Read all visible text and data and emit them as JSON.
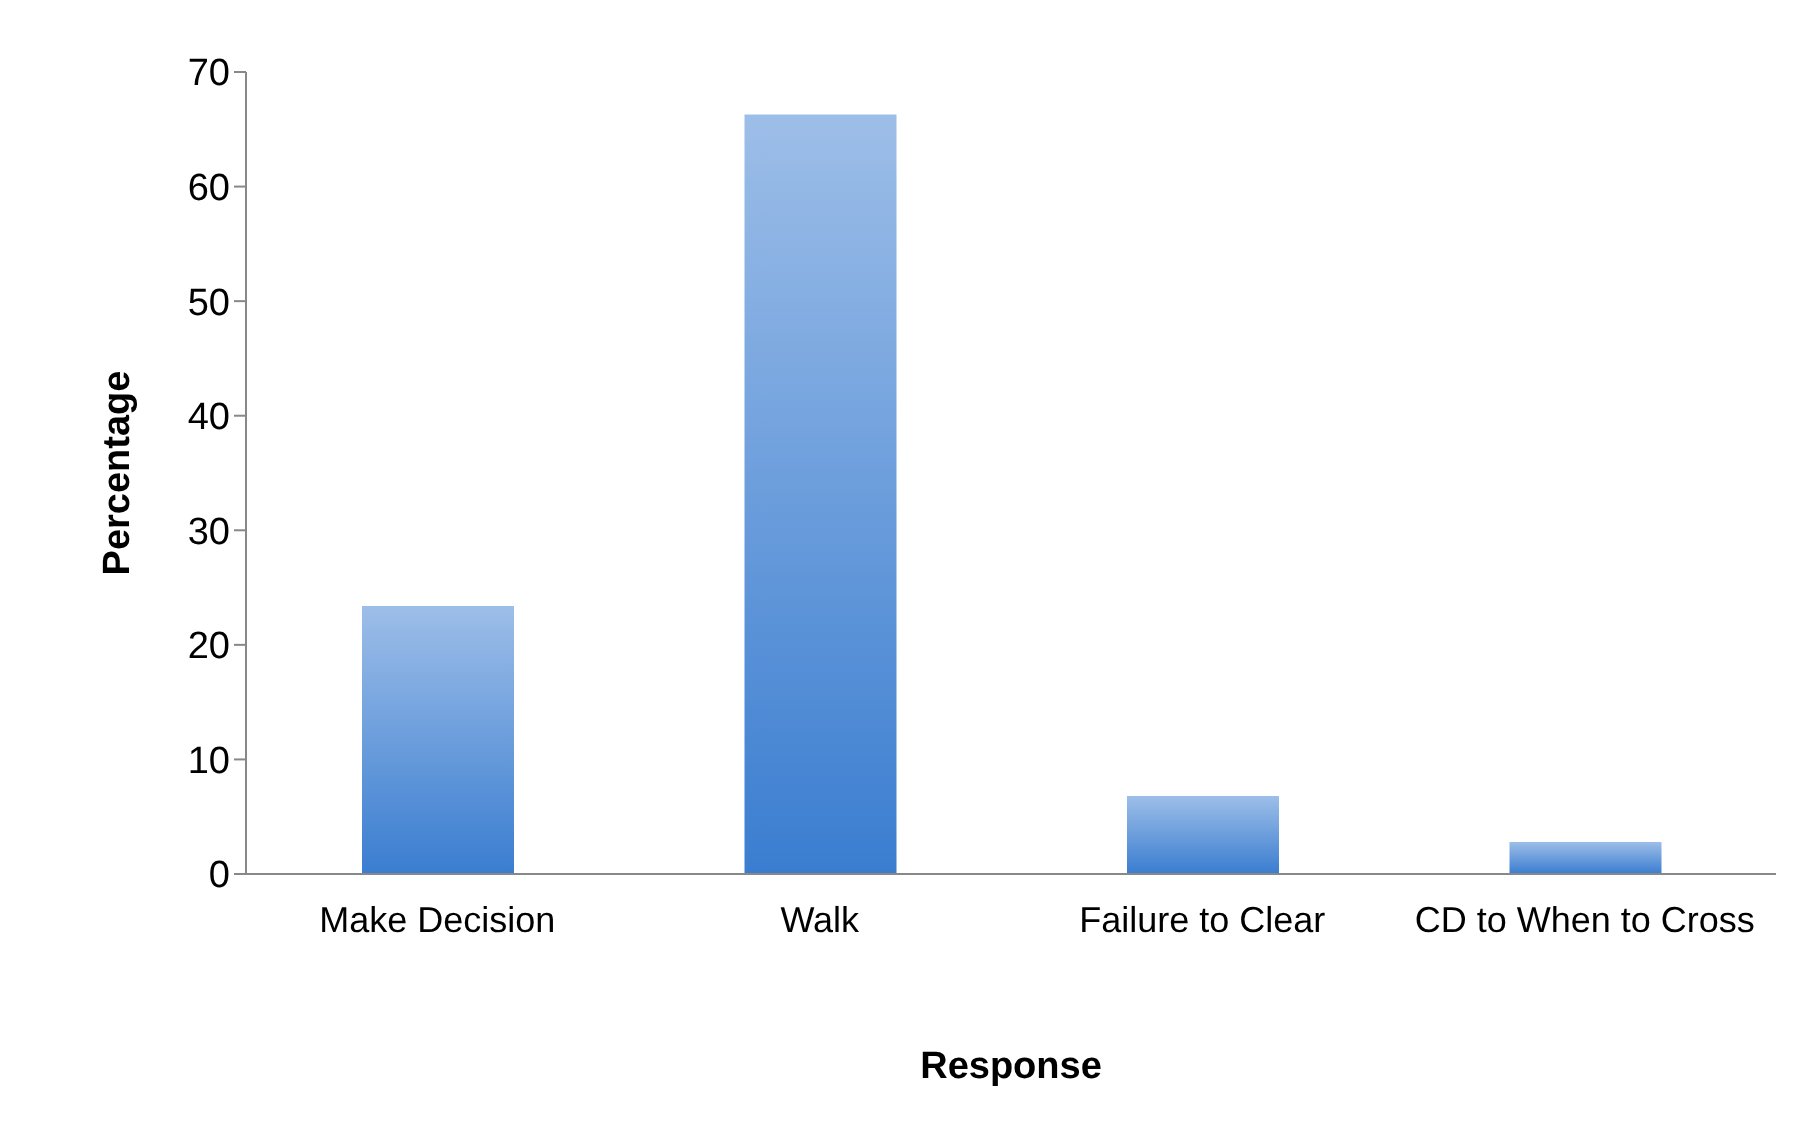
{
  "chart_data": {
    "type": "bar",
    "xlabel": "Response",
    "ylabel": "Percentage",
    "categories": [
      "Make Decision",
      "Walk",
      "Failure to Clear",
      "CD to When to Cross"
    ],
    "values": [
      23.4,
      66.3,
      6.8,
      2.8
    ],
    "color": "#3a7dd0",
    "ylim": [
      0,
      70
    ],
    "yticks": [
      0,
      10,
      20,
      30,
      40,
      50,
      60,
      70
    ],
    "grid": false,
    "legend": false
  }
}
